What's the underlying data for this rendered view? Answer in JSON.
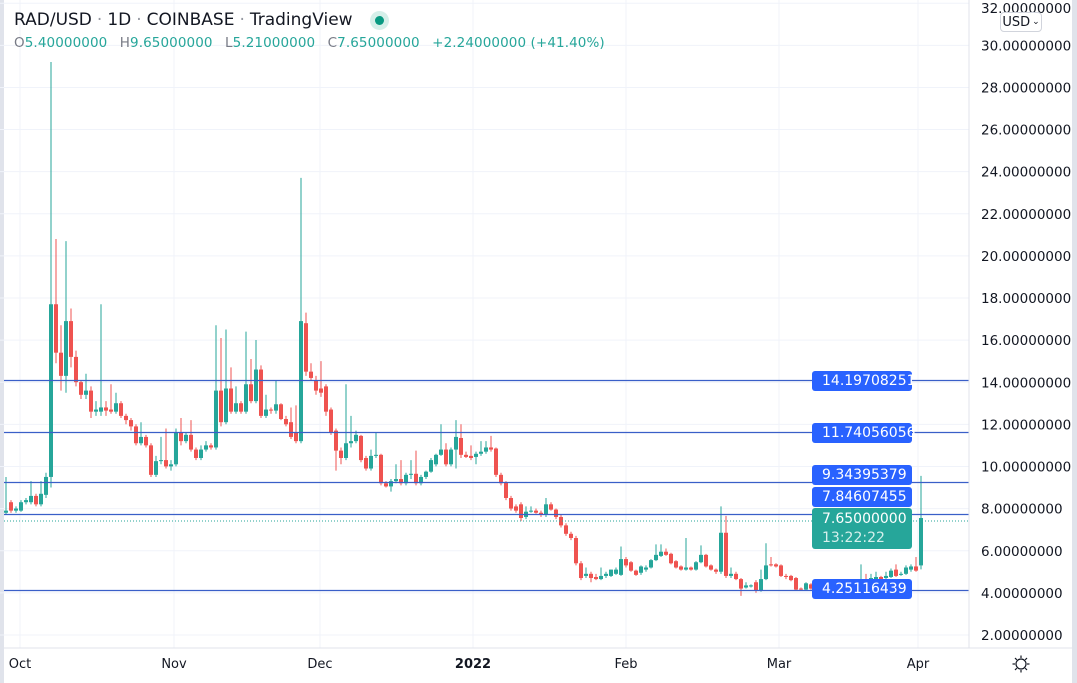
{
  "header": {
    "symbol": "RAD/USD",
    "interval": "1D",
    "exchange": "COINBASE",
    "source": "TradingView",
    "ohlc": {
      "o_label": "O",
      "o": "5.40000000",
      "h_label": "H",
      "h": "9.65000000",
      "l_label": "L",
      "l": "5.21000000",
      "c_label": "C",
      "c": "7.65000000",
      "change": "+2.24000000 (+41.40%)"
    }
  },
  "currency_button": "USD",
  "settings_icon": "gear-icon",
  "colors": {
    "up": "#26a69a",
    "down": "#ef5350",
    "hline": "#2962ff",
    "label_bg": "#2962ff",
    "current_bg": "#26a69a"
  },
  "price_labels": {
    "l1": "14.19708251",
    "l2": "11.74056056",
    "l3": "9.34395379",
    "l4": "7.84607455",
    "current_price": "7.65000000",
    "countdown": "13:22:22",
    "l5": "4.25116439"
  },
  "chart_data": {
    "type": "candlestick",
    "y_ticks": [
      "32.00000000",
      "30.00000000",
      "28.00000000",
      "26.00000000",
      "24.00000000",
      "22.00000000",
      "20.00000000",
      "18.00000000",
      "16.00000000",
      "14.00000000",
      "12.00000000",
      "10.00000000",
      "8.00000000",
      "6.00000000",
      "4.00000000",
      "2.00000000"
    ],
    "ylim": [
      2,
      32
    ],
    "x_ticks": [
      "Oct",
      "Nov",
      "Dec",
      "2022",
      "Feb",
      "Mar",
      "Apr"
    ],
    "horizontal_lines": [
      14.19708251,
      11.74056056,
      9.34395379,
      7.84607455,
      4.25116439
    ],
    "current_price": 7.65,
    "grid": true,
    "ohlc": [
      [
        7.9,
        9.6,
        7.8,
        8.0
      ],
      [
        8.4,
        8.5,
        7.9,
        8.0
      ],
      [
        8.0,
        8.2,
        7.9,
        8.1
      ],
      [
        8.0,
        8.5,
        7.95,
        8.4
      ],
      [
        8.4,
        8.6,
        8.3,
        8.5
      ],
      [
        8.4,
        9.4,
        8.3,
        8.7
      ],
      [
        8.7,
        8.8,
        8.2,
        8.3
      ],
      [
        8.3,
        9.4,
        8.2,
        8.8
      ],
      [
        8.75,
        9.8,
        8.6,
        9.6
      ],
      [
        9.6,
        29.3,
        9.1,
        17.8
      ],
      [
        17.8,
        20.9,
        15.0,
        15.5
      ],
      [
        15.5,
        16.8,
        13.7,
        14.4
      ],
      [
        14.4,
        20.8,
        13.6,
        17.0
      ],
      [
        17.0,
        17.6,
        14.8,
        15.3
      ],
      [
        15.3,
        15.6,
        13.9,
        14.1
      ],
      [
        14.1,
        14.2,
        13.3,
        13.5
      ],
      [
        13.5,
        14.5,
        13.3,
        13.7
      ],
      [
        13.7,
        13.9,
        12.4,
        12.7
      ],
      [
        12.7,
        13.2,
        12.5,
        12.8
      ],
      [
        12.7,
        17.8,
        12.5,
        12.9
      ],
      [
        12.9,
        13.2,
        12.5,
        12.75
      ],
      [
        12.8,
        14.0,
        12.6,
        12.7
      ],
      [
        12.7,
        13.6,
        12.6,
        13.1
      ],
      [
        13.1,
        13.2,
        12.4,
        12.5
      ],
      [
        12.5,
        12.6,
        12.1,
        12.3
      ],
      [
        12.3,
        12.4,
        11.8,
        12.0
      ],
      [
        12.0,
        12.1,
        11.1,
        11.2
      ],
      [
        11.2,
        12.2,
        11.1,
        11.5
      ],
      [
        11.5,
        11.6,
        11.0,
        11.1
      ],
      [
        11.1,
        11.2,
        9.6,
        9.7
      ],
      [
        9.7,
        10.6,
        9.6,
        10.35
      ],
      [
        10.35,
        11.5,
        10.2,
        10.4
      ],
      [
        10.4,
        11.9,
        10.0,
        10.1
      ],
      [
        10.1,
        10.4,
        9.9,
        10.2
      ],
      [
        10.2,
        11.9,
        10.1,
        11.7
      ],
      [
        11.7,
        12.4,
        11.1,
        11.3
      ],
      [
        11.3,
        11.7,
        11.2,
        11.6
      ],
      [
        11.6,
        12.3,
        10.8,
        10.9
      ],
      [
        10.9,
        11.0,
        10.4,
        10.5
      ],
      [
        10.5,
        11.1,
        10.4,
        10.9
      ],
      [
        10.9,
        11.3,
        10.8,
        11.1
      ],
      [
        11.1,
        11.2,
        10.9,
        11.0
      ],
      [
        11.0,
        16.8,
        10.9,
        13.7
      ],
      [
        13.7,
        16.2,
        12.0,
        12.2
      ],
      [
        12.2,
        16.6,
        12.1,
        13.8
      ],
      [
        13.8,
        14.8,
        12.6,
        12.7
      ],
      [
        12.7,
        13.9,
        12.6,
        13.1
      ],
      [
        13.1,
        13.2,
        12.6,
        12.7
      ],
      [
        12.7,
        16.5,
        12.6,
        14.0
      ],
      [
        14.0,
        15.2,
        13.1,
        13.2
      ],
      [
        13.2,
        16.1,
        13.1,
        14.7
      ],
      [
        14.7,
        14.9,
        12.4,
        12.5
      ],
      [
        12.5,
        13.5,
        12.4,
        12.8
      ],
      [
        12.8,
        12.9,
        12.6,
        12.75
      ],
      [
        12.75,
        14.2,
        12.6,
        13.05
      ],
      [
        13.05,
        13.1,
        12.3,
        12.35
      ],
      [
        12.35,
        12.5,
        12.0,
        12.1
      ],
      [
        12.2,
        12.9,
        11.4,
        11.5
      ],
      [
        11.7,
        13.0,
        11.2,
        11.3
      ],
      [
        11.3,
        23.8,
        11.2,
        17.0
      ],
      [
        16.9,
        17.4,
        14.4,
        14.6
      ],
      [
        14.6,
        15.0,
        14.2,
        14.3
      ],
      [
        14.2,
        14.4,
        13.5,
        13.7
      ],
      [
        13.8,
        15.1,
        13.4,
        13.6
      ],
      [
        13.9,
        14.0,
        12.5,
        12.7
      ],
      [
        12.8,
        12.9,
        11.6,
        11.7
      ],
      [
        11.8,
        11.9,
        9.9,
        10.85
      ],
      [
        10.85,
        11.0,
        10.2,
        10.5
      ],
      [
        10.5,
        14.0,
        10.4,
        11.2
      ],
      [
        11.2,
        12.5,
        11.0,
        11.3
      ],
      [
        11.3,
        11.8,
        11.2,
        11.6
      ],
      [
        11.55,
        11.6,
        10.3,
        10.4
      ],
      [
        10.5,
        10.6,
        9.9,
        10.0
      ],
      [
        10.0,
        10.9,
        9.9,
        10.6
      ],
      [
        10.6,
        11.7,
        10.5,
        10.65
      ],
      [
        10.65,
        10.7,
        9.2,
        9.3
      ],
      [
        9.3,
        9.4,
        9.1,
        9.15
      ],
      [
        9.15,
        9.5,
        8.9,
        9.4
      ],
      [
        9.4,
        10.2,
        9.3,
        9.5
      ],
      [
        9.5,
        10.4,
        9.2,
        9.3
      ],
      [
        9.3,
        9.8,
        9.2,
        9.7
      ],
      [
        9.7,
        10.4,
        9.5,
        9.75
      ],
      [
        9.75,
        10.85,
        9.2,
        9.3
      ],
      [
        9.3,
        9.7,
        9.2,
        9.6
      ],
      [
        9.6,
        9.9,
        9.5,
        9.85
      ],
      [
        9.85,
        10.5,
        9.8,
        10.4
      ],
      [
        10.2,
        10.7,
        10.1,
        10.65
      ],
      [
        10.65,
        12.1,
        10.6,
        10.9
      ],
      [
        10.9,
        11.2,
        10.1,
        10.2
      ],
      [
        10.2,
        11.0,
        10.1,
        10.9
      ],
      [
        10.9,
        12.3,
        10.0,
        11.5
      ],
      [
        11.45,
        12.1,
        10.5,
        10.65
      ],
      [
        10.65,
        10.8,
        10.5,
        10.55
      ],
      [
        10.6,
        11.1,
        10.4,
        10.5
      ],
      [
        10.55,
        10.8,
        10.2,
        10.7
      ],
      [
        10.7,
        11.3,
        10.6,
        10.8
      ],
      [
        10.8,
        11.3,
        10.7,
        11.0
      ],
      [
        11.0,
        11.55,
        10.8,
        10.9
      ],
      [
        10.95,
        11.0,
        9.6,
        9.7
      ],
      [
        9.7,
        9.8,
        9.2,
        9.3
      ],
      [
        9.35,
        9.4,
        8.5,
        8.6
      ],
      [
        8.6,
        8.7,
        8.0,
        8.1
      ],
      [
        8.2,
        8.3,
        7.9,
        8.0
      ],
      [
        8.3,
        8.4,
        7.5,
        7.65
      ],
      [
        7.7,
        8.2,
        7.6,
        7.95
      ],
      [
        7.95,
        8.2,
        7.9,
        8.0
      ],
      [
        8.0,
        8.1,
        7.85,
        7.9
      ],
      [
        7.9,
        8.0,
        7.7,
        7.8
      ],
      [
        7.8,
        8.6,
        7.7,
        8.3
      ],
      [
        8.3,
        8.4,
        8.0,
        8.05
      ],
      [
        8.05,
        8.1,
        7.6,
        7.7
      ],
      [
        7.7,
        7.8,
        7.2,
        7.3
      ],
      [
        7.3,
        7.4,
        6.8,
        6.9
      ],
      [
        6.9,
        7.0,
        6.6,
        6.7
      ],
      [
        6.7,
        6.8,
        5.4,
        5.5
      ],
      [
        5.5,
        5.6,
        4.7,
        4.8
      ],
      [
        4.9,
        5.3,
        4.8,
        5.0
      ],
      [
        5.0,
        5.1,
        4.6,
        4.8
      ],
      [
        4.85,
        5.0,
        4.7,
        4.75
      ],
      [
        4.75,
        5.3,
        4.7,
        4.9
      ],
      [
        4.9,
        5.1,
        4.8,
        5.0
      ],
      [
        4.9,
        5.2,
        4.85,
        5.2
      ],
      [
        5.0,
        5.3,
        4.95,
        5.2
      ],
      [
        4.95,
        6.3,
        4.9,
        5.7
      ],
      [
        5.7,
        5.8,
        5.3,
        5.4
      ],
      [
        5.55,
        5.6,
        5.1,
        5.15
      ],
      [
        5.15,
        5.2,
        4.9,
        4.95
      ],
      [
        5.05,
        5.4,
        4.95,
        5.35
      ],
      [
        5.2,
        5.4,
        5.1,
        5.3
      ],
      [
        5.3,
        5.7,
        5.25,
        5.65
      ],
      [
        5.65,
        6.4,
        5.6,
        5.9
      ],
      [
        5.85,
        6.4,
        5.8,
        6.05
      ],
      [
        6.05,
        6.2,
        5.85,
        5.9
      ],
      [
        5.95,
        6.0,
        5.45,
        5.5
      ],
      [
        5.6,
        5.65,
        5.25,
        5.3
      ],
      [
        5.35,
        5.4,
        5.15,
        5.2
      ],
      [
        5.2,
        6.7,
        5.15,
        5.3
      ],
      [
        5.3,
        5.35,
        5.15,
        5.2
      ],
      [
        5.2,
        5.6,
        5.15,
        5.55
      ],
      [
        5.55,
        6.35,
        5.5,
        5.9
      ],
      [
        5.9,
        5.95,
        5.3,
        5.35
      ],
      [
        5.4,
        5.45,
        5.15,
        5.2
      ],
      [
        5.2,
        5.25,
        5.0,
        5.1
      ],
      [
        5.1,
        8.2,
        5.0,
        6.95
      ],
      [
        6.95,
        7.75,
        4.8,
        4.9
      ],
      [
        4.9,
        5.3,
        4.8,
        5.0
      ],
      [
        5.0,
        5.1,
        4.7,
        4.75
      ],
      [
        4.75,
        4.8,
        3.95,
        4.3
      ],
      [
        4.35,
        4.6,
        4.3,
        4.45
      ],
      [
        4.4,
        4.5,
        4.35,
        4.45
      ],
      [
        4.6,
        4.7,
        4.1,
        4.2
      ],
      [
        4.2,
        5.2,
        4.15,
        4.75
      ],
      [
        4.75,
        6.45,
        4.7,
        5.4
      ],
      [
        5.45,
        5.8,
        5.35,
        5.4
      ],
      [
        5.45,
        5.5,
        5.3,
        5.35
      ],
      [
        5.4,
        5.45,
        4.85,
        4.9
      ],
      [
        4.9,
        5.0,
        4.75,
        4.85
      ],
      [
        4.9,
        4.95,
        4.65,
        4.7
      ],
      [
        4.8,
        4.85,
        4.2,
        4.25
      ],
      [
        4.3,
        4.35,
        4.2,
        4.25
      ],
      [
        4.25,
        4.6,
        4.2,
        4.55
      ],
      [
        4.5,
        4.55,
        4.25,
        4.3
      ],
      [
        4.35,
        4.4,
        4.25,
        4.3
      ],
      [
        4.4,
        4.45,
        4.2,
        4.25
      ],
      [
        4.25,
        4.45,
        4.2,
        4.35
      ],
      [
        4.35,
        4.4,
        4.25,
        4.3
      ],
      [
        4.3,
        4.35,
        4.2,
        4.25
      ],
      [
        4.25,
        4.4,
        4.2,
        4.35
      ],
      [
        4.35,
        4.4,
        4.2,
        4.25
      ],
      [
        4.3,
        4.35,
        4.15,
        4.2
      ],
      [
        4.2,
        4.7,
        4.15,
        4.65
      ],
      [
        4.65,
        5.45,
        4.6,
        4.75
      ],
      [
        4.75,
        5.0,
        4.55,
        4.6
      ],
      [
        4.6,
        5.0,
        4.55,
        4.8
      ],
      [
        4.75,
        5.1,
        4.7,
        4.85
      ],
      [
        4.85,
        4.9,
        4.7,
        4.75
      ],
      [
        4.8,
        5.1,
        4.75,
        4.9
      ],
      [
        4.85,
        5.25,
        4.8,
        5.15
      ],
      [
        5.2,
        5.45,
        4.85,
        4.9
      ],
      [
        4.95,
        5.1,
        4.9,
        5.0
      ],
      [
        5.0,
        5.4,
        4.95,
        5.3
      ],
      [
        5.2,
        5.45,
        5.1,
        5.35
      ],
      [
        5.35,
        5.8,
        5.1,
        5.15
      ],
      [
        5.4,
        9.65,
        5.21,
        7.65
      ]
    ]
  }
}
